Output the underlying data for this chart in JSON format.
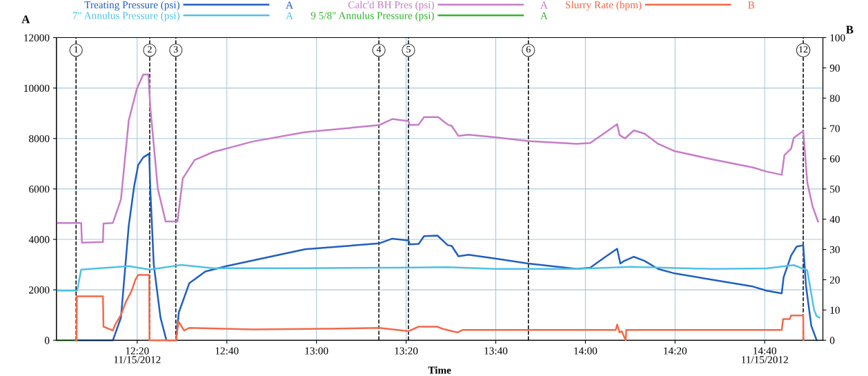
{
  "chart_data": {
    "type": "line",
    "xlabel": "Time",
    "ylabel": "A",
    "y2label": "B",
    "xlim": [
      12.033,
      14.883
    ],
    "ylim": [
      0,
      12000
    ],
    "y2lim": [
      0,
      100
    ],
    "xticks": [
      {
        "value": 12.3333,
        "label": "12:20\n11/15/2012"
      },
      {
        "value": 12.6667,
        "label": "12:40"
      },
      {
        "value": 13,
        "label": "13:00"
      },
      {
        "value": 13.3333,
        "label": "13:20"
      },
      {
        "value": 13.6667,
        "label": "13:40"
      },
      {
        "value": 14,
        "label": "14:00"
      },
      {
        "value": 14.3333,
        "label": "14:20"
      },
      {
        "value": 14.6667,
        "label": "14:40\n11/15/2012"
      }
    ],
    "yticks": [
      0,
      2000,
      4000,
      6000,
      8000,
      10000,
      12000
    ],
    "y2ticks": [
      0,
      10,
      20,
      30,
      40,
      50,
      60,
      70,
      80,
      90,
      100
    ],
    "grid": true,
    "legend": "top",
    "annotations": [
      "A",
      "A",
      "A",
      "A",
      "B",
      {
        "text": "1",
        "x": 12.106,
        "y": 11500
      },
      {
        "text": "2",
        "x": 12.38,
        "y": 11500
      },
      {
        "text": "3",
        "x": 12.477,
        "y": 11500
      },
      {
        "text": "4",
        "x": 13.232,
        "y": 11500
      },
      {
        "text": "5",
        "x": 13.342,
        "y": 11500
      },
      {
        "text": "6",
        "x": 13.788,
        "y": 11500
      },
      {
        "text": "12",
        "x": 14.81,
        "y": 11500
      }
    ],
    "ref_lines": [
      {
        "axis": "x",
        "value": 12.106,
        "color": "#000000",
        "line_style": "dashed"
      },
      {
        "axis": "x",
        "value": 12.38,
        "color": "#000000",
        "line_style": "dashed"
      },
      {
        "axis": "x",
        "value": 12.477,
        "color": "#000000",
        "line_style": "dashed"
      },
      {
        "axis": "x",
        "value": 13.232,
        "color": "#000000",
        "line_style": "dashed"
      },
      {
        "axis": "x",
        "value": 13.342,
        "color": "#000000",
        "line_style": "dashed"
      },
      {
        "axis": "x",
        "value": 13.788,
        "color": "#000000",
        "line_style": "dashed"
      },
      {
        "axis": "x",
        "value": 14.81,
        "color": "#000000",
        "line_style": "dashed"
      }
    ],
    "series": [
      {
        "name": "Treating Pressure (psi)",
        "color": "#1f5fbf",
        "x": [
          12.11,
          12.243,
          12.273,
          12.302,
          12.322,
          12.337,
          12.356,
          12.378,
          12.382,
          12.395,
          12.42,
          12.442,
          12.478,
          12.488,
          12.527,
          12.587,
          12.665,
          12.958,
          13.233,
          13.282,
          13.342,
          13.347,
          13.38,
          13.4,
          13.45,
          13.488,
          13.503,
          13.528,
          13.565,
          13.665,
          13.788,
          13.968,
          14.018,
          14.068,
          14.118,
          14.13,
          14.145,
          14.18,
          14.22,
          14.27,
          14.332,
          14.472,
          14.623,
          14.673,
          14.73,
          14.737,
          14.765,
          14.785,
          14.81,
          14.82,
          14.84,
          14.86
        ],
        "values": [
          0,
          0,
          900,
          4550,
          6100,
          6950,
          7250,
          7400,
          6000,
          3000,
          900,
          0,
          0,
          1100,
          2260,
          2730,
          2940,
          3610,
          3840,
          4030,
          3960,
          3800,
          3820,
          4130,
          4150,
          3770,
          3740,
          3330,
          3390,
          3240,
          3040,
          2830,
          2880,
          3260,
          3630,
          3040,
          3150,
          3310,
          3150,
          2830,
          2650,
          2400,
          2130,
          1970,
          1860,
          2500,
          3360,
          3710,
          3770,
          2180,
          570,
          0
        ]
      },
      {
        "name": "7\" Annulus Pressure (psi)",
        "color": "#4fc0e6",
        "x": [
          12.034,
          12.11,
          12.125,
          12.302,
          12.38,
          12.498,
          12.615,
          12.958,
          13.3,
          13.488,
          13.665,
          13.968,
          14.17,
          14.472,
          14.673,
          14.775,
          14.825,
          14.85,
          14.86,
          14.87
        ],
        "values": [
          1970,
          1970,
          2800,
          2940,
          2800,
          2990,
          2860,
          2860,
          2880,
          2900,
          2830,
          2830,
          2910,
          2830,
          2850,
          2980,
          2770,
          1220,
          950,
          900
        ]
      },
      {
        "name": "Calc'd BH Pres (psi)",
        "color": "#c77cc7",
        "x": [
          12.034,
          12.125,
          12.128,
          12.206,
          12.208,
          12.243,
          12.273,
          12.302,
          12.332,
          12.356,
          12.375,
          12.382,
          12.41,
          12.439,
          12.483,
          12.503,
          12.547,
          12.615,
          12.763,
          12.958,
          13.233,
          13.282,
          13.342,
          13.347,
          13.38,
          13.4,
          13.453,
          13.488,
          13.503,
          13.528,
          13.565,
          13.665,
          13.788,
          13.968,
          14.018,
          14.068,
          14.118,
          14.127,
          14.147,
          14.18,
          14.22,
          14.27,
          14.332,
          14.472,
          14.623,
          14.673,
          14.73,
          14.74,
          14.765,
          14.775,
          14.81,
          14.825,
          14.845,
          14.865
        ],
        "values": [
          4650,
          4650,
          3870,
          3900,
          4630,
          4650,
          5590,
          8720,
          9970,
          10540,
          10540,
          9240,
          6010,
          4710,
          4710,
          6420,
          7150,
          7460,
          7880,
          8250,
          8530,
          8770,
          8690,
          8530,
          8550,
          8850,
          8850,
          8550,
          8500,
          8100,
          8150,
          8050,
          7900,
          7790,
          7820,
          8190,
          8570,
          8140,
          8000,
          8320,
          8190,
          7790,
          7500,
          7170,
          6850,
          6690,
          6560,
          7340,
          7600,
          8030,
          8300,
          6260,
          5300,
          4710
        ]
      },
      {
        "name": "9 5/8\" Annulus Pressure (psi)",
        "color": "#2db52d",
        "x": [
          12.034,
          12.106
        ],
        "values": [
          0,
          0
        ]
      },
      {
        "name": "Slurry Rate (bpm)",
        "color": "#f26a4a",
        "axis": "y2",
        "x": [
          12.106,
          12.108,
          12.109,
          12.206,
          12.208,
          12.243,
          12.25,
          12.273,
          12.292,
          12.312,
          12.327,
          12.337,
          12.378,
          12.379,
          12.478,
          12.487,
          12.508,
          12.527,
          12.763,
          13.03,
          13.233,
          13.342,
          13.37,
          13.38,
          13.45,
          13.468,
          13.503,
          13.525,
          13.543,
          14.113,
          14.118,
          14.127,
          14.135,
          14.15,
          14.152,
          14.73,
          14.735,
          14.76,
          14.765,
          14.81,
          14.811
        ],
        "values": [
          0,
          0,
          14.5,
          14.5,
          4.5,
          3.2,
          4.9,
          8.4,
          12.8,
          16.2,
          20.1,
          21.6,
          21.6,
          0,
          0,
          6.2,
          3.2,
          4.1,
          3.6,
          3.8,
          4.1,
          3.0,
          4.1,
          4.5,
          4.5,
          3.8,
          3.0,
          2.6,
          3.4,
          3.4,
          5.2,
          2.6,
          3.0,
          0,
          3.4,
          3.4,
          7.0,
          7.0,
          8.2,
          8.2,
          0
        ]
      }
    ]
  }
}
